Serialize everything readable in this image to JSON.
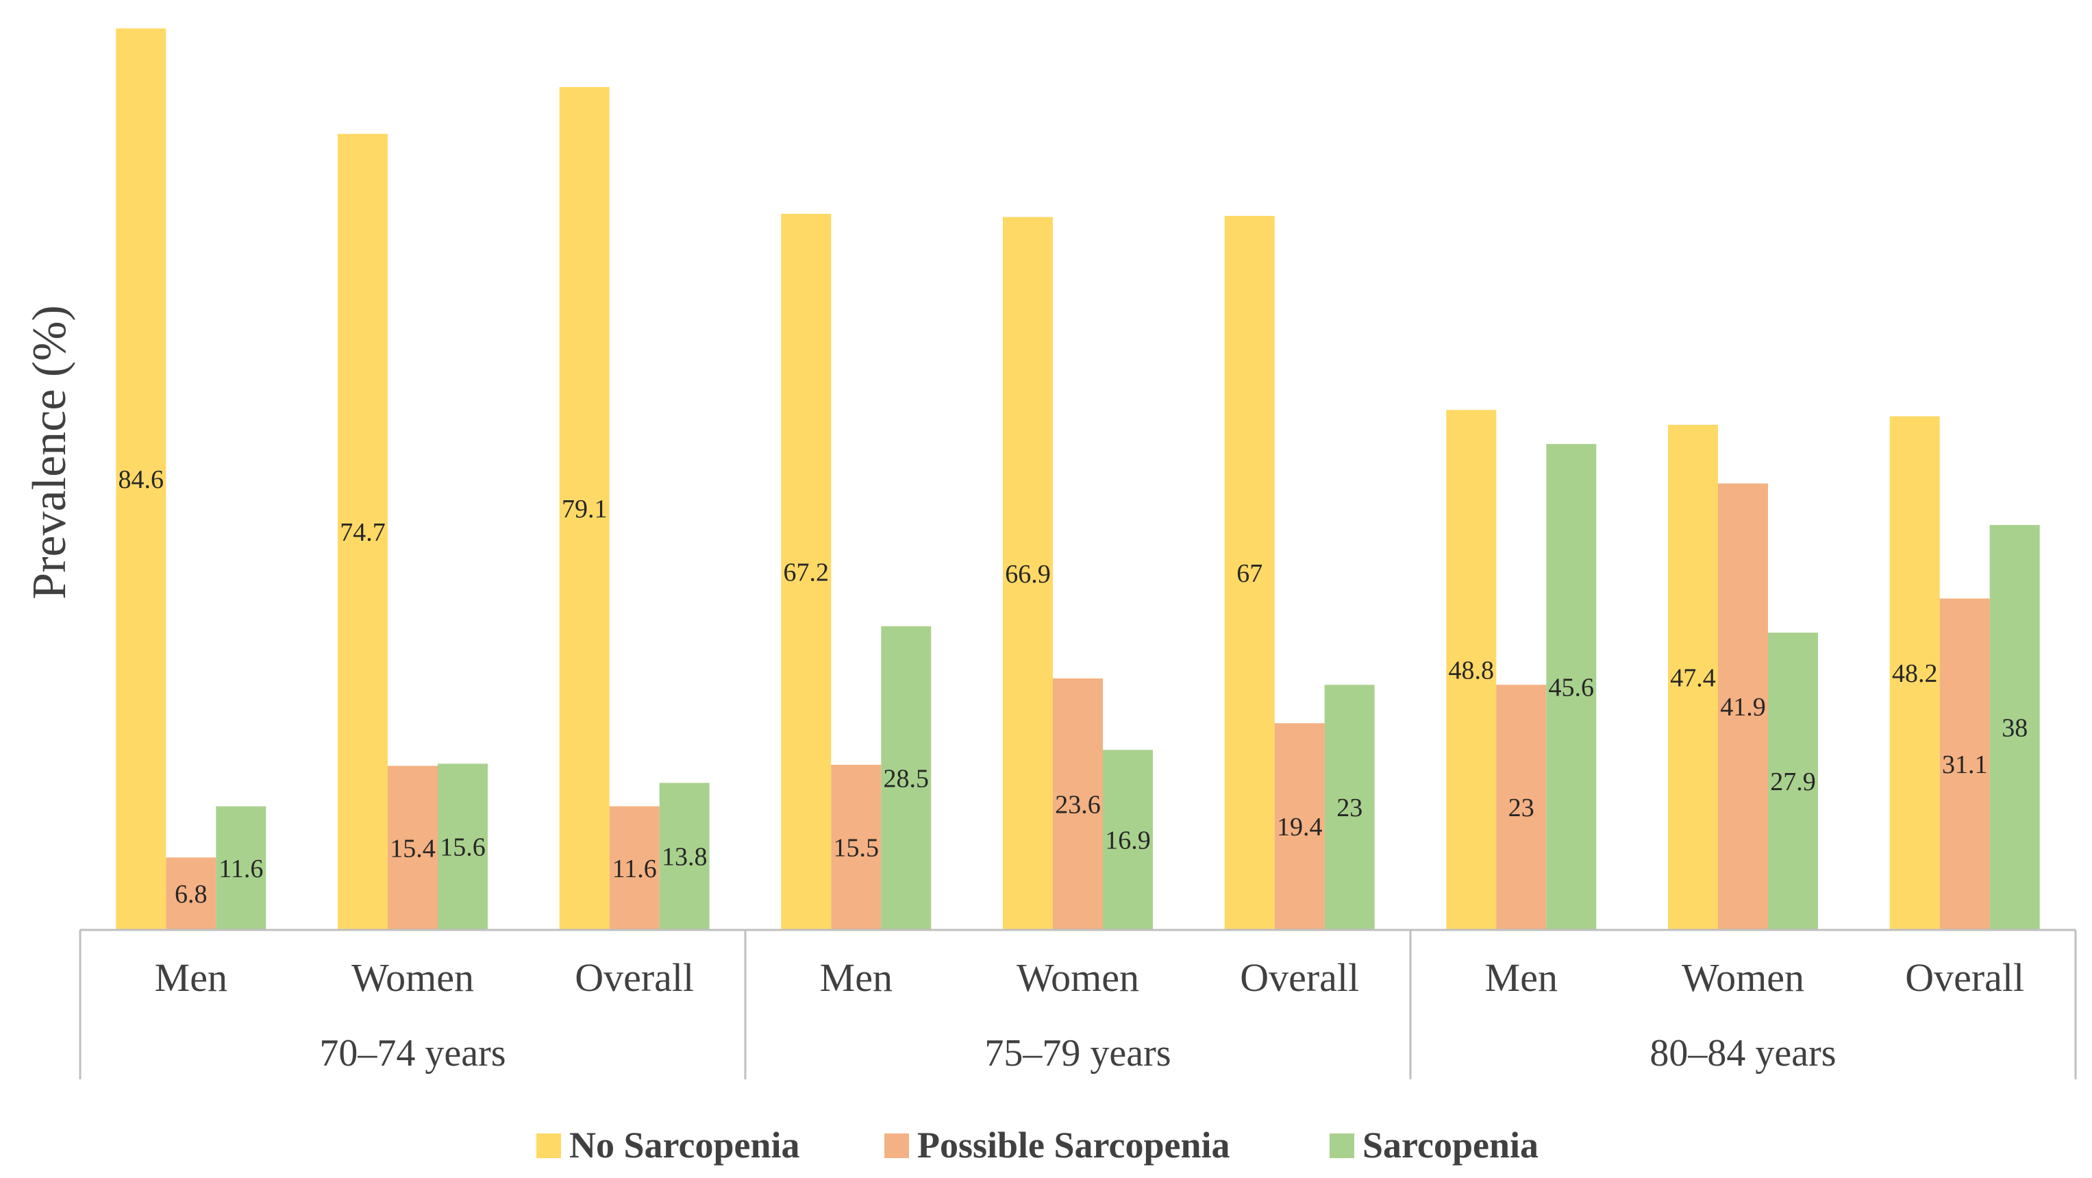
{
  "chart_data": {
    "type": "bar",
    "title": "",
    "xlabel": "",
    "ylabel": "Prevalence  (%)",
    "ylim": [
      0,
      87
    ],
    "grid": false,
    "legend_position": "bottom",
    "groups": [
      "70–74 years",
      "75–79 years",
      "80–84 years"
    ],
    "categories": [
      "Men",
      "Women",
      "Overall",
      "Men",
      "Women",
      "Overall",
      "Men",
      "Women",
      "Overall"
    ],
    "series": [
      {
        "name": "No Sarcopenia",
        "color": "#FFD966",
        "values": [
          84.6,
          74.7,
          79.1,
          67.2,
          66.9,
          67,
          48.8,
          47.4,
          48.2
        ]
      },
      {
        "name": "Possible Sarcopenia",
        "color": "#F4B183",
        "values": [
          6.8,
          15.4,
          11.6,
          15.5,
          23.6,
          19.4,
          23,
          41.9,
          31.1
        ]
      },
      {
        "name": "Sarcopenia",
        "color": "#A9D18E",
        "values": [
          11.6,
          15.6,
          13.8,
          28.5,
          16.9,
          23,
          45.6,
          27.9,
          38
        ]
      }
    ]
  }
}
